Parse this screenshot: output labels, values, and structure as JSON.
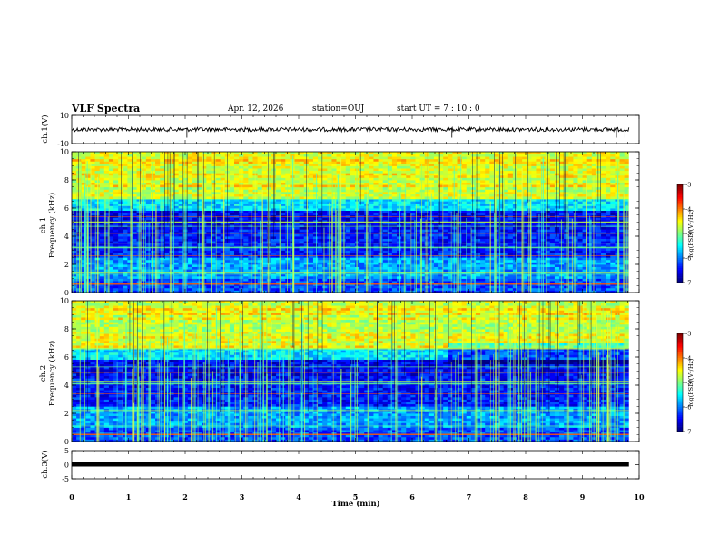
{
  "header": {
    "title": "VLF Spectra",
    "date": "Apr. 12, 2026",
    "station": "station=OUJ",
    "start": "start  UT  =   7 : 10 : 0"
  },
  "chart_data": [
    {
      "type": "line",
      "name": "ch1-waveform",
      "ylabel": "ch.1(V)",
      "ylim": [
        -10,
        10
      ],
      "yticks": [
        "10",
        "-10"
      ],
      "xlim": [
        0,
        10
      ],
      "baseline_value": 0
    },
    {
      "type": "heatmap",
      "name": "ch1-spectrogram",
      "ylabel": "ch.1\nFrequency (kHz)",
      "ylabel_line1": "ch.1",
      "ylabel_line2": "Frequency (kHz)",
      "ylim": [
        0,
        10
      ],
      "yticks": [
        "0",
        "2",
        "4",
        "6",
        "8",
        "10"
      ],
      "xlim": [
        0,
        10
      ],
      "colorbar": {
        "label": "log(PSD)(V²/Hz)",
        "range": [
          -7,
          -3
        ],
        "ticks": [
          "-3",
          "-4",
          "-5",
          "-6",
          "-7"
        ]
      }
    },
    {
      "type": "heatmap",
      "name": "ch2-spectrogram",
      "ylabel_line1": "ch.2",
      "ylabel_line2": "Frequency (kHz)",
      "ylim": [
        0,
        10
      ],
      "yticks": [
        "0",
        "2",
        "4",
        "6",
        "8",
        "10"
      ],
      "xlim": [
        0,
        10
      ],
      "colorbar": {
        "label": "log(PSD)(V²/Hz)",
        "range": [
          -7,
          -3
        ],
        "ticks": [
          "-3",
          "-4",
          "-5",
          "-6",
          "-7"
        ]
      }
    },
    {
      "type": "line",
      "name": "ch3-waveform",
      "ylabel": "ch.3(V)",
      "ylim": [
        -5,
        5
      ],
      "yticks": [
        "5",
        "0",
        "-5"
      ],
      "xlim": [
        0,
        10
      ],
      "baseline_value": 0
    }
  ],
  "xaxis": {
    "label": "Time (min)",
    "ticks": [
      "0",
      "1",
      "2",
      "3",
      "4",
      "5",
      "6",
      "7",
      "8",
      "9",
      "10"
    ],
    "data_end": 9.82
  },
  "colors": {
    "low": "#00007f",
    "mid": "#00ff7f",
    "high": "#7f0000"
  }
}
